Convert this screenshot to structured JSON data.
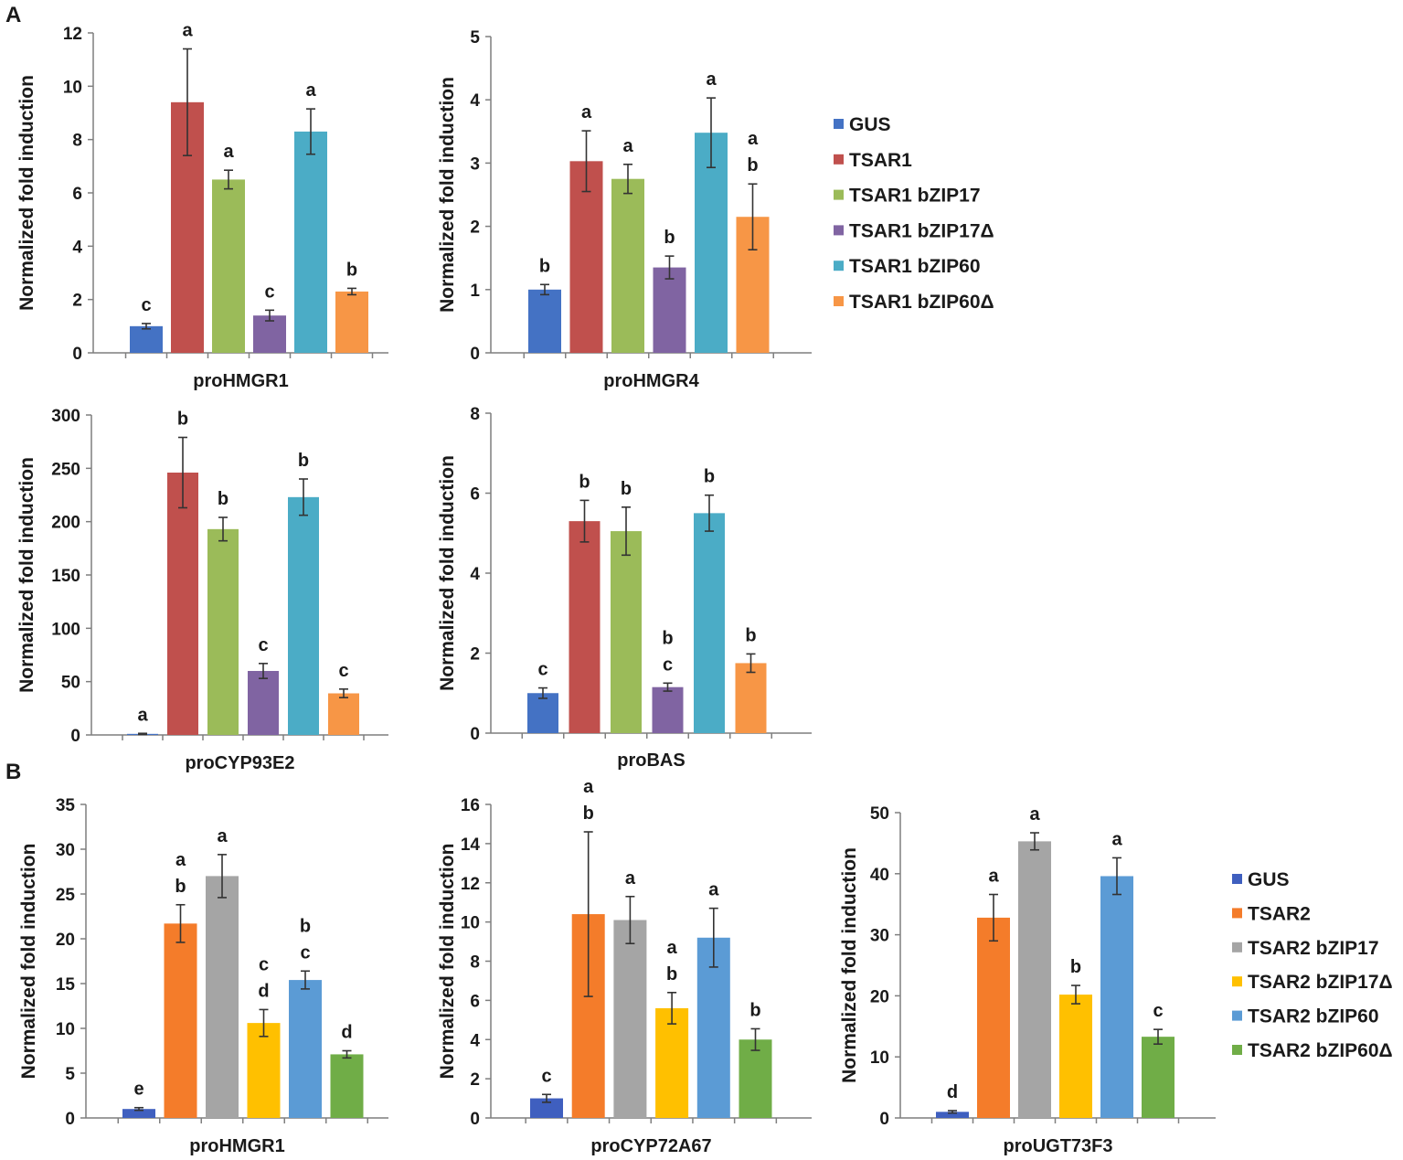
{
  "panels": [
    {
      "label": "A"
    },
    {
      "label": "B"
    }
  ],
  "legends": [
    {
      "name": "legend-a",
      "entries": [
        {
          "label": "GUS",
          "color": "#4472c4"
        },
        {
          "label": "TSAR1",
          "color": "#c0504d"
        },
        {
          "label": "TSAR1 bZIP17",
          "color": "#9bbb59"
        },
        {
          "label": "TSAR1 bZIP17Δ",
          "color": "#8064a2"
        },
        {
          "label": "TSAR1 bZIP60",
          "color": "#4bacc6"
        },
        {
          "label": "TSAR1 bZIP60Δ",
          "color": "#f79646"
        }
      ]
    },
    {
      "name": "legend-b",
      "entries": [
        {
          "label": "GUS",
          "color": "#3f5fbf"
        },
        {
          "label": "TSAR2",
          "color": "#f47c2a"
        },
        {
          "label": "TSAR2 bZIP17",
          "color": "#a5a5a5"
        },
        {
          "label": "TSAR2 bZIP17Δ",
          "color": "#ffc000"
        },
        {
          "label": "TSAR2 bZIP60",
          "color": "#5b9bd5"
        },
        {
          "label": "TSAR2 bZIP60Δ",
          "color": "#70ad47"
        }
      ]
    }
  ],
  "chart_data": [
    {
      "type": "bar",
      "panel": "A",
      "title": "",
      "xlabel": "proHMGR1",
      "ylabel": "Normalized fold induction",
      "ylim": [
        0,
        12
      ],
      "yticks": [
        0,
        2,
        4,
        6,
        8,
        10,
        12
      ],
      "categories": [
        "GUS",
        "TSAR1",
        "TSAR1 bZIP17",
        "TSAR1 bZIP17Δ",
        "TSAR1 bZIP60",
        "TSAR1 bZIP60Δ"
      ],
      "values": [
        1.0,
        9.4,
        6.5,
        1.4,
        8.3,
        2.3
      ],
      "errors": [
        0.1,
        2.0,
        0.35,
        0.2,
        0.85,
        0.12
      ],
      "letters": [
        "c",
        "a",
        "a",
        "c",
        "a",
        "b"
      ]
    },
    {
      "type": "bar",
      "panel": "A",
      "title": "",
      "xlabel": "proHMGR4",
      "ylabel": "Normalized fold induction",
      "ylim": [
        0,
        5
      ],
      "yticks": [
        0,
        1,
        2,
        3,
        4,
        5
      ],
      "categories": [
        "GUS",
        "TSAR1",
        "TSAR1 bZIP17",
        "TSAR1 bZIP17Δ",
        "TSAR1 bZIP60",
        "TSAR1 bZIP60Δ"
      ],
      "values": [
        1.0,
        3.03,
        2.75,
        1.35,
        3.48,
        2.15
      ],
      "errors": [
        0.08,
        0.48,
        0.23,
        0.18,
        0.55,
        0.52
      ],
      "letters": [
        "b",
        "a",
        "a",
        "b",
        "a",
        "a b"
      ]
    },
    {
      "type": "bar",
      "panel": "A",
      "title": "",
      "xlabel": "proCYP93E2",
      "ylabel": "Normalized fold induction",
      "ylim": [
        0,
        300
      ],
      "yticks": [
        0,
        50,
        100,
        150,
        200,
        250,
        300
      ],
      "categories": [
        "GUS",
        "TSAR1",
        "TSAR1 bZIP17",
        "TSAR1 bZIP17Δ",
        "TSAR1 bZIP60",
        "TSAR1 bZIP60Δ"
      ],
      "values": [
        1,
        246,
        193,
        60,
        223,
        39
      ],
      "errors": [
        0.5,
        33,
        11,
        7,
        17,
        4
      ],
      "letters": [
        "a",
        "b",
        "b",
        "c",
        "b",
        "c"
      ]
    },
    {
      "type": "bar",
      "panel": "A",
      "title": "",
      "xlabel": "proBAS",
      "ylabel": "Normalized fold induction",
      "ylim": [
        0,
        8
      ],
      "yticks": [
        0,
        2,
        4,
        6,
        8
      ],
      "categories": [
        "GUS",
        "TSAR1",
        "TSAR1 bZIP17",
        "TSAR1 bZIP17Δ",
        "TSAR1 bZIP60",
        "TSAR1 bZIP60Δ"
      ],
      "values": [
        1.0,
        5.3,
        5.05,
        1.15,
        5.5,
        1.75
      ],
      "errors": [
        0.13,
        0.52,
        0.6,
        0.1,
        0.45,
        0.23
      ],
      "letters": [
        "c",
        "b",
        "b",
        "b c",
        "b",
        "b"
      ]
    },
    {
      "type": "bar",
      "panel": "B",
      "title": "",
      "xlabel": "proHMGR1",
      "ylabel": "Normalized fold induction",
      "ylim": [
        0,
        35
      ],
      "yticks": [
        0,
        5,
        10,
        15,
        20,
        25,
        30,
        35
      ],
      "categories": [
        "GUS",
        "TSAR2",
        "TSAR2 bZIP17",
        "TSAR2 bZIP17Δ",
        "TSAR2 bZIP60",
        "TSAR2 bZIP60Δ"
      ],
      "values": [
        1.0,
        21.7,
        27.0,
        10.6,
        15.4,
        7.1
      ],
      "errors": [
        0.15,
        2.1,
        2.4,
        1.5,
        1.0,
        0.4
      ],
      "letters": [
        "e",
        "a b",
        "a",
        "c d",
        "b c",
        "d"
      ]
    },
    {
      "type": "bar",
      "panel": "B",
      "title": "",
      "xlabel": "proCYP72A67",
      "ylabel": "Normalized fold induction",
      "ylim": [
        0,
        16
      ],
      "yticks": [
        0,
        2,
        4,
        6,
        8,
        10,
        12,
        14,
        16
      ],
      "categories": [
        "GUS",
        "TSAR2",
        "TSAR2 bZIP17",
        "TSAR2 bZIP17Δ",
        "TSAR2 bZIP60",
        "TSAR2 bZIP60Δ"
      ],
      "values": [
        1.0,
        10.4,
        10.1,
        5.6,
        9.2,
        4.0
      ],
      "errors": [
        0.2,
        4.2,
        1.2,
        0.8,
        1.5,
        0.55
      ],
      "letters": [
        "c",
        "a b",
        "a",
        "a b",
        "a",
        "b"
      ]
    },
    {
      "type": "bar",
      "panel": "B",
      "title": "",
      "xlabel": "proUGT73F3",
      "ylabel": "Normalized fold induction",
      "ylim": [
        0,
        50
      ],
      "yticks": [
        0,
        10,
        20,
        30,
        40,
        50
      ],
      "categories": [
        "GUS",
        "TSAR2",
        "TSAR2 bZIP17",
        "TSAR2 bZIP17Δ",
        "TSAR2 bZIP60",
        "TSAR2 bZIP60Δ"
      ],
      "values": [
        1.0,
        32.8,
        45.3,
        20.2,
        39.6,
        13.3
      ],
      "errors": [
        0.2,
        3.8,
        1.4,
        1.5,
        3.0,
        1.2
      ],
      "letters": [
        "d",
        "a",
        "a",
        "b",
        "a",
        "c"
      ]
    }
  ]
}
